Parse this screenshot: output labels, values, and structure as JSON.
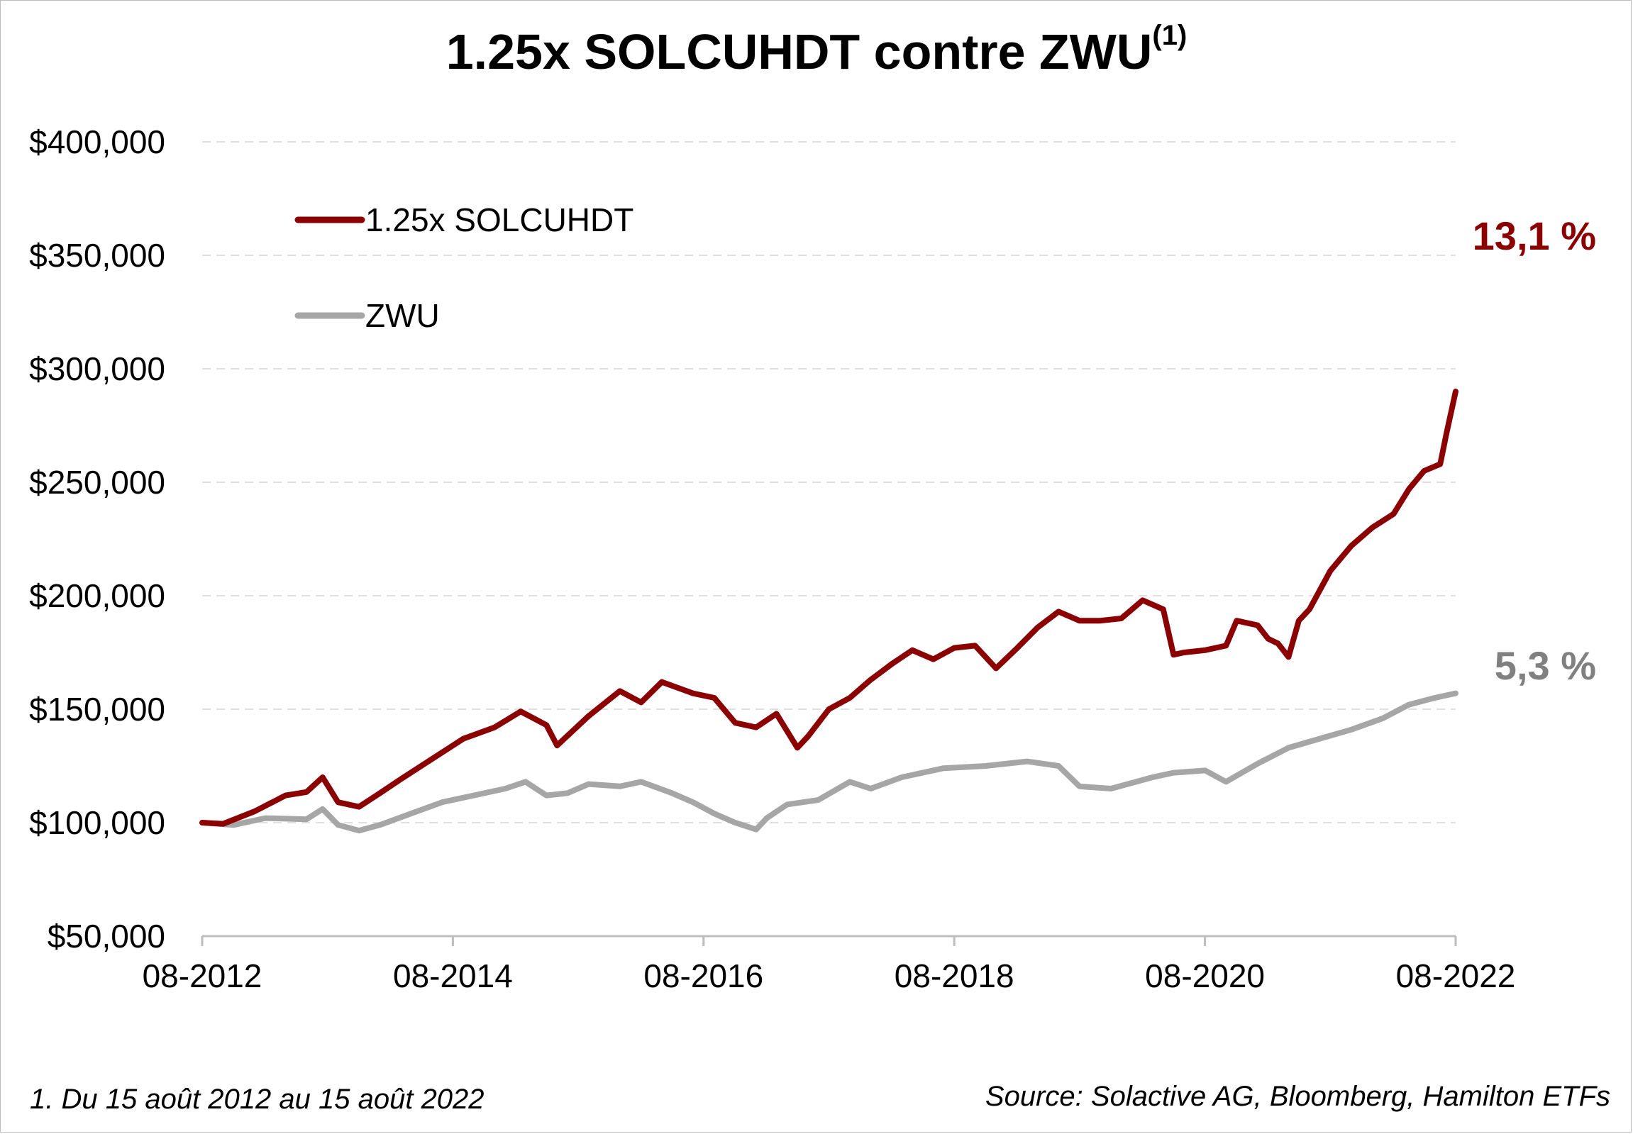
{
  "chart_title": "1.25x SOLCUHDT contre ZWU",
  "title_superscript": "(1)",
  "footnote": "1. Du 15 août 2012 au 15 août 2022",
  "source": "Source: Solactive AG, Bloomberg, Hamilton ETFs",
  "colors": {
    "solcuhdt": "#8b0000",
    "zwu": "#a6a6a6",
    "zwu_label": "#808080",
    "grid": "#e0e0e0",
    "axis": "#bdbdbd"
  },
  "chart_data": {
    "type": "line",
    "title": "1.25x SOLCUHDT contre ZWU",
    "xlabel": "",
    "ylabel": "",
    "x_ticks": [
      "08-2012",
      "08-2014",
      "08-2016",
      "08-2018",
      "08-2020",
      "08-2022"
    ],
    "y_ticks": [
      "$50,000",
      "$100,000",
      "$150,000",
      "$200,000",
      "$250,000",
      "$300,000",
      "$350,000",
      "$400,000"
    ],
    "ylim": [
      50000,
      400000
    ],
    "grid": true,
    "legend_position": "top-left",
    "series": [
      {
        "name": "1.25x SOLCUHDT",
        "end_label": "13,1 %",
        "points": [
          [
            "2012-08-15",
            100000
          ],
          [
            "2012-10-15",
            99500
          ],
          [
            "2013-01-15",
            105000
          ],
          [
            "2013-04-15",
            112000
          ],
          [
            "2013-06-15",
            113500
          ],
          [
            "2013-08-01",
            120000
          ],
          [
            "2013-09-15",
            109000
          ],
          [
            "2013-11-15",
            107000
          ],
          [
            "2014-01-15",
            113000
          ],
          [
            "2014-03-15",
            119000
          ],
          [
            "2014-06-15",
            128000
          ],
          [
            "2014-09-15",
            137000
          ],
          [
            "2014-12-15",
            142000
          ],
          [
            "2015-03-01",
            149000
          ],
          [
            "2015-05-15",
            143000
          ],
          [
            "2015-06-15",
            134000
          ],
          [
            "2015-09-15",
            147000
          ],
          [
            "2015-12-15",
            158000
          ],
          [
            "2016-02-15",
            153000
          ],
          [
            "2016-04-15",
            162000
          ],
          [
            "2016-07-15",
            157000
          ],
          [
            "2016-09-15",
            155000
          ],
          [
            "2016-11-15",
            144000
          ],
          [
            "2017-01-15",
            142000
          ],
          [
            "2017-03-15",
            148000
          ],
          [
            "2017-05-15",
            133000
          ],
          [
            "2017-06-15",
            138000
          ],
          [
            "2017-08-15",
            150000
          ],
          [
            "2017-10-15",
            155000
          ],
          [
            "2017-12-15",
            163000
          ],
          [
            "2018-02-15",
            170000
          ],
          [
            "2018-04-15",
            176000
          ],
          [
            "2018-06-15",
            172000
          ],
          [
            "2018-08-15",
            177000
          ],
          [
            "2018-10-15",
            178000
          ],
          [
            "2018-12-15",
            168000
          ],
          [
            "2019-02-15",
            177000
          ],
          [
            "2019-04-15",
            186000
          ],
          [
            "2019-06-15",
            193000
          ],
          [
            "2019-08-15",
            189000
          ],
          [
            "2019-10-15",
            189000
          ],
          [
            "2019-12-15",
            190000
          ],
          [
            "2020-02-15",
            198000
          ],
          [
            "2020-04-15",
            194000
          ],
          [
            "2020-05-15",
            174000
          ],
          [
            "2020-06-15",
            175000
          ],
          [
            "2020-08-15",
            176000
          ],
          [
            "2020-10-15",
            178000
          ],
          [
            "2020-11-15",
            189000
          ],
          [
            "2021-01-15",
            187000
          ],
          [
            "2021-02-15",
            181000
          ],
          [
            "2021-03-15",
            179000
          ],
          [
            "2021-04-15",
            173000
          ],
          [
            "2021-05-15",
            189000
          ],
          [
            "2021-06-15",
            194000
          ],
          [
            "2021-08-15",
            211000
          ],
          [
            "2021-10-15",
            222000
          ],
          [
            "2021-12-15",
            230000
          ],
          [
            "2022-02-15",
            236000
          ],
          [
            "2022-04-01",
            247000
          ],
          [
            "2022-05-15",
            255000
          ],
          [
            "2022-07-01",
            258000
          ],
          [
            "2022-07-20",
            272000
          ],
          [
            "2022-08-15",
            290000
          ]
        ]
      },
      {
        "name": "ZWU",
        "end_label": "5,3 %",
        "points": [
          [
            "2012-08-15",
            100000
          ],
          [
            "2012-11-15",
            99000
          ],
          [
            "2013-02-15",
            102000
          ],
          [
            "2013-06-15",
            101500
          ],
          [
            "2013-08-01",
            106000
          ],
          [
            "2013-09-15",
            99000
          ],
          [
            "2013-11-15",
            96500
          ],
          [
            "2014-01-15",
            99000
          ],
          [
            "2014-04-15",
            104000
          ],
          [
            "2014-07-15",
            109000
          ],
          [
            "2014-10-15",
            112000
          ],
          [
            "2015-01-15",
            115000
          ],
          [
            "2015-03-15",
            118000
          ],
          [
            "2015-05-15",
            112000
          ],
          [
            "2015-07-15",
            113000
          ],
          [
            "2015-09-15",
            117000
          ],
          [
            "2015-12-15",
            116000
          ],
          [
            "2016-02-15",
            118000
          ],
          [
            "2016-05-15",
            113000
          ],
          [
            "2016-07-15",
            109000
          ],
          [
            "2016-09-15",
            104000
          ],
          [
            "2016-11-15",
            100000
          ],
          [
            "2017-01-15",
            97000
          ],
          [
            "2017-02-15",
            102000
          ],
          [
            "2017-04-15",
            108000
          ],
          [
            "2017-07-15",
            110000
          ],
          [
            "2017-10-15",
            118000
          ],
          [
            "2017-12-15",
            115000
          ],
          [
            "2018-03-15",
            120000
          ],
          [
            "2018-07-15",
            124000
          ],
          [
            "2018-11-15",
            125000
          ],
          [
            "2019-03-15",
            127000
          ],
          [
            "2019-06-15",
            125000
          ],
          [
            "2019-08-15",
            116000
          ],
          [
            "2019-11-15",
            115000
          ],
          [
            "2020-03-15",
            120000
          ],
          [
            "2020-05-15",
            122000
          ],
          [
            "2020-08-15",
            123000
          ],
          [
            "2020-10-15",
            118000
          ],
          [
            "2021-01-15",
            126000
          ],
          [
            "2021-04-15",
            133000
          ],
          [
            "2021-07-15",
            137000
          ],
          [
            "2021-10-15",
            141000
          ],
          [
            "2022-01-15",
            146000
          ],
          [
            "2022-04-01",
            152000
          ],
          [
            "2022-06-15",
            155000
          ],
          [
            "2022-08-15",
            157000
          ]
        ]
      }
    ]
  }
}
